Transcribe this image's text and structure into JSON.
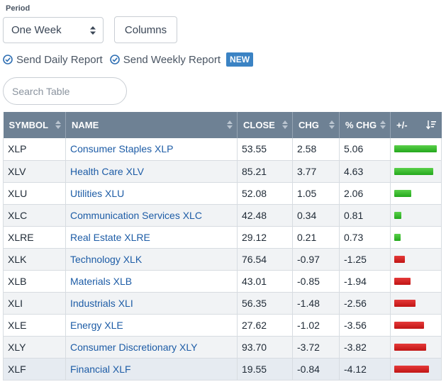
{
  "period": {
    "label": "Period",
    "selected": "One Week"
  },
  "columns_label": "Columns",
  "reports": {
    "daily": "Send Daily Report",
    "weekly": "Send Weekly Report",
    "new_badge": "NEW"
  },
  "search": {
    "placeholder": "Search Table"
  },
  "colors": {
    "header": "#6e8194",
    "link": "#1d5ca6",
    "positive": "#2cb024",
    "negative": "#d01c1c",
    "badge": "#3b83c4"
  },
  "table": {
    "headers": [
      "SYMBOL",
      "NAME",
      "CLOSE",
      "CHG",
      "% CHG",
      "+/-"
    ],
    "rows": [
      {
        "symbol": "XLP",
        "name": "Consumer Staples XLP",
        "close": "53.55",
        "chg": "2.58",
        "pct": "5.06"
      },
      {
        "symbol": "XLV",
        "name": "Health Care XLV",
        "close": "85.21",
        "chg": "3.77",
        "pct": "4.63"
      },
      {
        "symbol": "XLU",
        "name": "Utilities XLU",
        "close": "52.08",
        "chg": "1.05",
        "pct": "2.06"
      },
      {
        "symbol": "XLC",
        "name": "Communication Services XLC",
        "close": "42.48",
        "chg": "0.34",
        "pct": "0.81"
      },
      {
        "symbol": "XLRE",
        "name": "Real Estate XLRE",
        "close": "29.12",
        "chg": "0.21",
        "pct": "0.73"
      },
      {
        "symbol": "XLK",
        "name": "Technology XLK",
        "close": "76.54",
        "chg": "-0.97",
        "pct": "-1.25"
      },
      {
        "symbol": "XLB",
        "name": "Materials XLB",
        "close": "43.01",
        "chg": "-0.85",
        "pct": "-1.94"
      },
      {
        "symbol": "XLI",
        "name": "Industrials XLI",
        "close": "56.35",
        "chg": "-1.48",
        "pct": "-2.56"
      },
      {
        "symbol": "XLE",
        "name": "Energy XLE",
        "close": "27.62",
        "chg": "-1.02",
        "pct": "-3.56"
      },
      {
        "symbol": "XLY",
        "name": "Consumer Discretionary XLY",
        "close": "93.70",
        "chg": "-3.72",
        "pct": "-3.82"
      },
      {
        "symbol": "XLF",
        "name": "Financial XLF",
        "close": "19.55",
        "chg": "-0.84",
        "pct": "-4.12"
      }
    ]
  }
}
